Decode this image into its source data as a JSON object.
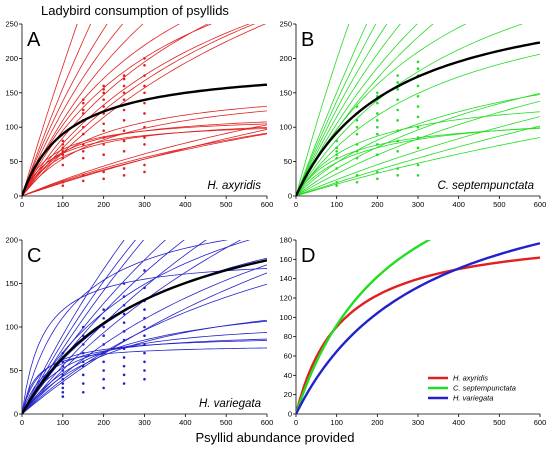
{
  "figure": {
    "title": "Ladybird consumption of psyllids",
    "xlabel": "Psyllid abundance provided"
  },
  "colors": {
    "axyridis": "#e02020",
    "septempunctata": "#22dd22",
    "variegata": "#2222cc",
    "mean_curve": "#000000"
  },
  "chart_data": [
    {
      "type": "line",
      "panel": "A",
      "species_label": "H. axyridis",
      "color": "#e02020",
      "xlim": [
        0,
        600
      ],
      "ylim": [
        0,
        250
      ],
      "x_ticks": [
        0,
        100,
        200,
        300,
        400,
        500,
        600
      ],
      "y_ticks": [
        0,
        50,
        100,
        150,
        200,
        250
      ],
      "mean_curve": {
        "a": 1.7,
        "h": 0.0052
      },
      "individual_curves": [
        {
          "a": 2.0,
          "h": 0.0003
        },
        {
          "a": 1.7,
          "h": 0.0005
        },
        {
          "a": 1.6,
          "h": 0.001
        },
        {
          "a": 1.45,
          "h": 0.0012
        },
        {
          "a": 1.3,
          "h": 0.0014
        },
        {
          "a": 1.3,
          "h": 0.002
        },
        {
          "a": 1.2,
          "h": 0.0022
        },
        {
          "a": 1.0,
          "h": 0.0018
        },
        {
          "a": 0.9,
          "h": 0.002
        },
        {
          "a": 0.8,
          "h": 0.0018
        },
        {
          "a": 0.7,
          "h": 0.0016
        },
        {
          "a": 1.0,
          "h": 0.006
        },
        {
          "a": 0.8,
          "h": 0.006
        },
        {
          "a": 1.3,
          "h": 0.008
        },
        {
          "a": 1.6,
          "h": 0.0085
        },
        {
          "a": 1.1,
          "h": 0.0085
        },
        {
          "a": 1.4,
          "h": 0.009
        },
        {
          "a": 0.25,
          "h": 0.003
        },
        {
          "a": 0.22,
          "h": 0.0035
        },
        {
          "a": 0.2,
          "h": 0.002
        },
        {
          "a": 0.24,
          "h": 0.004
        }
      ],
      "observations": [
        {
          "x": 100,
          "y": [
            15,
            20,
            45,
            55,
            60,
            65,
            70,
            75,
            80
          ]
        },
        {
          "x": 150,
          "y": [
            22,
            30,
            55,
            65,
            75,
            90,
            100,
            110,
            120,
            125,
            135,
            140
          ]
        },
        {
          "x": 200,
          "y": [
            25,
            35,
            60,
            75,
            85,
            95,
            105,
            120,
            130,
            140,
            150,
            155,
            160
          ]
        },
        {
          "x": 250,
          "y": [
            30,
            40,
            65,
            80,
            95,
            110,
            125,
            140,
            150,
            160,
            170,
            175
          ]
        },
        {
          "x": 300,
          "y": [
            35,
            45,
            75,
            85,
            100,
            120,
            135,
            150,
            160,
            175,
            190,
            200
          ]
        }
      ]
    },
    {
      "type": "line",
      "panel": "B",
      "species_label": "C. septempunctata",
      "color": "#22dd22",
      "xlim": [
        0,
        600
      ],
      "ylim": [
        0,
        250
      ],
      "x_ticks": [
        0,
        100,
        200,
        300,
        400,
        500,
        600
      ],
      "y_ticks": [
        0,
        50,
        100,
        150,
        200,
        250
      ],
      "mean_curve": {
        "a": 1.3,
        "h": 0.0032
      },
      "individual_curves": [
        {
          "a": 2.2,
          "h": 0.0005
        },
        {
          "a": 1.6,
          "h": 0.0004
        },
        {
          "a": 1.5,
          "h": 0.0006
        },
        {
          "a": 1.4,
          "h": 0.0008
        },
        {
          "a": 1.3,
          "h": 0.001
        },
        {
          "a": 1.2,
          "h": 0.0012
        },
        {
          "a": 1.1,
          "h": 0.0013
        },
        {
          "a": 1.2,
          "h": 0.002
        },
        {
          "a": 1.0,
          "h": 0.0022
        },
        {
          "a": 0.9,
          "h": 0.003
        },
        {
          "a": 1.0,
          "h": 0.0065
        },
        {
          "a": 1.0,
          "h": 0.0085
        },
        {
          "a": 0.8,
          "h": 0.008
        },
        {
          "a": 0.6,
          "h": 0.004
        },
        {
          "a": 0.45,
          "h": 0.003
        },
        {
          "a": 0.35,
          "h": 0.0025
        },
        {
          "a": 0.25,
          "h": 0.002
        },
        {
          "a": 0.2,
          "h": 0.0015
        },
        {
          "a": 0.18,
          "h": 0.0025
        }
      ],
      "observations": [
        {
          "x": 100,
          "y": [
            15,
            20,
            40,
            55,
            60,
            65,
            70,
            80
          ]
        },
        {
          "x": 150,
          "y": [
            20,
            30,
            55,
            65,
            75,
            90,
            100,
            110,
            120,
            130
          ]
        },
        {
          "x": 200,
          "y": [
            25,
            35,
            60,
            75,
            90,
            100,
            110,
            120,
            135,
            145,
            150
          ]
        },
        {
          "x": 250,
          "y": [
            30,
            40,
            65,
            80,
            95,
            110,
            125,
            140,
            155,
            165,
            175
          ]
        },
        {
          "x": 300,
          "y": [
            30,
            45,
            70,
            85,
            100,
            115,
            130,
            145,
            160,
            175,
            185,
            195
          ]
        }
      ]
    },
    {
      "type": "line",
      "panel": "C",
      "species_label": "H. variegata",
      "color": "#2222cc",
      "xlim": [
        0,
        600
      ],
      "ylim": [
        0,
        200
      ],
      "x_ticks": [
        0,
        100,
        200,
        300,
        400,
        500,
        600
      ],
      "y_ticks": [
        0,
        50,
        100,
        150,
        200
      ],
      "mean_curve": {
        "a": 0.85,
        "h": 0.0037
      },
      "individual_curves": [
        {
          "a": 3.5,
          "h": 0.0055
        },
        {
          "a": 2.0,
          "h": 0.004
        },
        {
          "a": 1.0,
          "h": 0.001
        },
        {
          "a": 0.9,
          "h": 0.001
        },
        {
          "a": 0.8,
          "h": 0.0008
        },
        {
          "a": 0.75,
          "h": 0.0012
        },
        {
          "a": 0.7,
          "h": 0.0014
        },
        {
          "a": 0.6,
          "h": 0.0013
        },
        {
          "a": 0.55,
          "h": 0.0016
        },
        {
          "a": 0.9,
          "h": 0.003
        },
        {
          "a": 0.8,
          "h": 0.0035
        },
        {
          "a": 0.5,
          "h": 0.0025
        },
        {
          "a": 0.45,
          "h": 0.003
        },
        {
          "a": 0.4,
          "h": 0.002
        },
        {
          "a": 2.0,
          "h": 0.011
        },
        {
          "a": 1.5,
          "h": 0.0105
        },
        {
          "a": 1.0,
          "h": 0.009
        },
        {
          "a": 2.5,
          "h": 0.0125
        },
        {
          "a": 0.7,
          "h": 0.007
        },
        {
          "a": 0.6,
          "h": 0.0065
        }
      ],
      "observations": [
        {
          "x": 100,
          "y": [
            20,
            25,
            30,
            35,
            40,
            45,
            50,
            55,
            60,
            65,
            70
          ]
        },
        {
          "x": 150,
          "y": [
            25,
            35,
            45,
            55,
            60,
            70,
            80,
            90,
            100
          ]
        },
        {
          "x": 200,
          "y": [
            30,
            40,
            50,
            60,
            70,
            80,
            90,
            100,
            110,
            120
          ]
        },
        {
          "x": 250,
          "y": [
            35,
            45,
            55,
            65,
            75,
            85,
            95,
            105,
            115,
            125,
            135,
            150
          ]
        },
        {
          "x": 300,
          "y": [
            40,
            50,
            60,
            70,
            80,
            90,
            100,
            110,
            120,
            130,
            145,
            165
          ]
        }
      ]
    },
    {
      "type": "line",
      "panel": "D",
      "xlim": [
        0,
        600
      ],
      "ylim": [
        0,
        180
      ],
      "x_ticks": [
        0,
        100,
        200,
        300,
        400,
        500,
        600
      ],
      "y_ticks": [
        0,
        20,
        40,
        60,
        80,
        100,
        120,
        140,
        160,
        180
      ],
      "legend_position": "bottom-right",
      "series": [
        {
          "name": "H. axyridis",
          "color": "#e02020",
          "a": 1.7,
          "h": 0.0052
        },
        {
          "name": "C. septempunctata",
          "color": "#22dd22",
          "a": 1.3,
          "h": 0.0032
        },
        {
          "name": "H. variegata",
          "color": "#2222cc",
          "a": 0.85,
          "h": 0.0037
        }
      ]
    }
  ]
}
